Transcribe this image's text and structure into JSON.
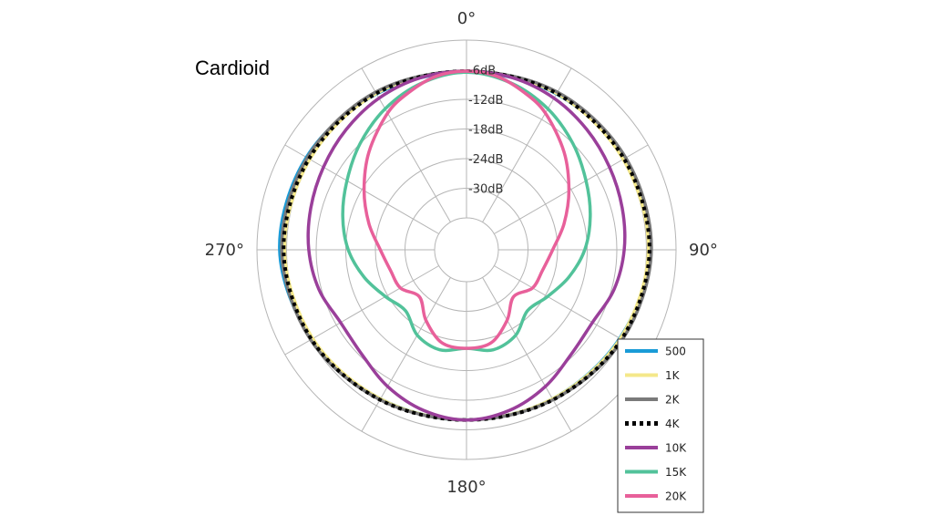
{
  "chart_data": {
    "type": "polar-line",
    "title": "Cardioid",
    "angle_labels": [
      {
        "angle": 0,
        "text": "0°"
      },
      {
        "angle": 90,
        "text": "90°"
      },
      {
        "angle": 180,
        "text": "180°"
      },
      {
        "angle": 270,
        "text": "270°"
      }
    ],
    "rings": [
      {
        "db": -6,
        "label": "-6dB"
      },
      {
        "db": -12,
        "label": "-12dB"
      },
      {
        "db": -18,
        "label": "-18dB"
      },
      {
        "db": -24,
        "label": "-24dB"
      },
      {
        "db": -30,
        "label": "-30dB"
      }
    ],
    "radial_range_db": [
      -36,
      0
    ],
    "spoke_angles_deg": [
      0,
      30,
      60,
      90,
      120,
      150,
      180,
      210,
      240,
      270,
      300,
      330
    ],
    "legend_placement": "bottom-right",
    "series": [
      {
        "name": "500",
        "color": "#1a9bd7",
        "dash": "",
        "angles": [
          0,
          30,
          60,
          90,
          120,
          150,
          180,
          210,
          240,
          270,
          300,
          330
        ],
        "values": [
          -6.5,
          -6.0,
          -5.5,
          -5.2,
          -6.6,
          -7.6,
          -8.0,
          -7.6,
          -6.2,
          -4.6,
          -5.0,
          -6.0
        ]
      },
      {
        "name": "1K",
        "color": "#f4e88a",
        "dash": "",
        "angles": [
          0,
          30,
          60,
          90,
          120,
          150,
          180,
          210,
          240,
          270,
          300,
          330
        ],
        "values": [
          -6.3,
          -5.9,
          -5.8,
          -5.6,
          -6.5,
          -7.6,
          -8.0,
          -7.6,
          -6.5,
          -5.6,
          -5.8,
          -5.9
        ]
      },
      {
        "name": "2K",
        "color": "#7a7a7a",
        "dash": "",
        "angles": [
          0,
          30,
          60,
          90,
          120,
          150,
          180,
          210,
          240,
          270,
          300,
          330
        ],
        "values": [
          -6.3,
          -5.6,
          -5.2,
          -5.0,
          -6.0,
          -7.4,
          -8.0,
          -7.4,
          -6.0,
          -5.0,
          -5.2,
          -5.6
        ]
      },
      {
        "name": "4K",
        "color": "#000000",
        "dash": "4 4",
        "angles": [
          0,
          30,
          60,
          90,
          120,
          150,
          180,
          210,
          240,
          270,
          300,
          330
        ],
        "values": [
          -6.3,
          -5.9,
          -5.6,
          -5.4,
          -6.2,
          -7.4,
          -8.0,
          -7.4,
          -6.2,
          -5.4,
          -5.6,
          -5.9
        ]
      },
      {
        "name": "10K",
        "color": "#9a3f9a",
        "dash": "",
        "angles": [
          0,
          15,
          30,
          45,
          60,
          75,
          90,
          105,
          120,
          135,
          150,
          165,
          180,
          195,
          210,
          225,
          240,
          255,
          270,
          285,
          300,
          315,
          330,
          345
        ],
        "values": [
          -6.3,
          -6.4,
          -7.0,
          -8.0,
          -9.0,
          -9.8,
          -10.5,
          -11.5,
          -13.0,
          -12.5,
          -10.5,
          -8.8,
          -8.0,
          -8.8,
          -10.5,
          -12.5,
          -13.0,
          -11.5,
          -10.5,
          -9.8,
          -9.0,
          -8.0,
          -7.0,
          -6.4
        ]
      },
      {
        "name": "15K",
        "color": "#52c29a",
        "dash": "",
        "angles": [
          0,
          15,
          30,
          45,
          60,
          75,
          90,
          105,
          120,
          135,
          150,
          165,
          180,
          195,
          210,
          225,
          240,
          255,
          270,
          285,
          300,
          315,
          330,
          345
        ],
        "values": [
          -6.5,
          -7.5,
          -9.5,
          -12.0,
          -14.5,
          -16.5,
          -18.5,
          -21.0,
          -23.5,
          -25.0,
          -22.5,
          -21.5,
          -22.5,
          -21.5,
          -22.5,
          -25.0,
          -23.5,
          -21.0,
          -18.5,
          -16.5,
          -14.5,
          -12.0,
          -9.5,
          -7.5
        ]
      },
      {
        "name": "20K",
        "color": "#e8609a",
        "dash": "",
        "angles": [
          0,
          10,
          20,
          30,
          45,
          60,
          75,
          90,
          105,
          120,
          135,
          150,
          165,
          180,
          195,
          210,
          225,
          240,
          255,
          270,
          285,
          300,
          315,
          330,
          340,
          350
        ],
        "values": [
          -6.3,
          -6.8,
          -8.5,
          -10.5,
          -14.5,
          -18.5,
          -22.0,
          -25.0,
          -26.5,
          -27.0,
          -29.0,
          -26.0,
          -23.0,
          -22.5,
          -23.0,
          -26.0,
          -29.0,
          -27.0,
          -26.5,
          -25.0,
          -22.0,
          -18.5,
          -14.5,
          -10.5,
          -8.5,
          -6.8
        ]
      }
    ]
  }
}
